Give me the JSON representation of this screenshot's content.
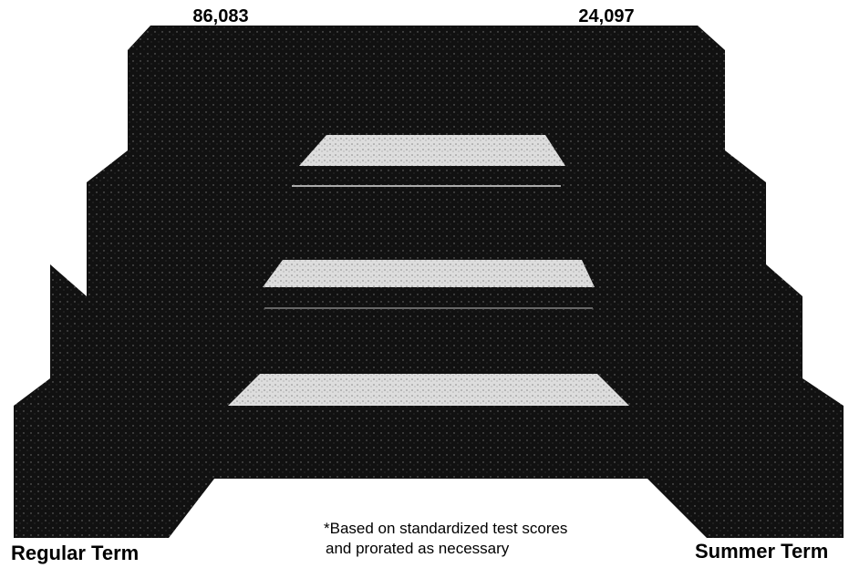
{
  "top_labels": {
    "regular_total": "86,083",
    "summer_total": "24,097"
  },
  "bottom_labels": {
    "regular": "Regular Term",
    "summer": "Summer Term"
  },
  "footnote": {
    "lines": [
      "*Based on standardized test scores",
      "and prorated as necessary"
    ]
  }
}
